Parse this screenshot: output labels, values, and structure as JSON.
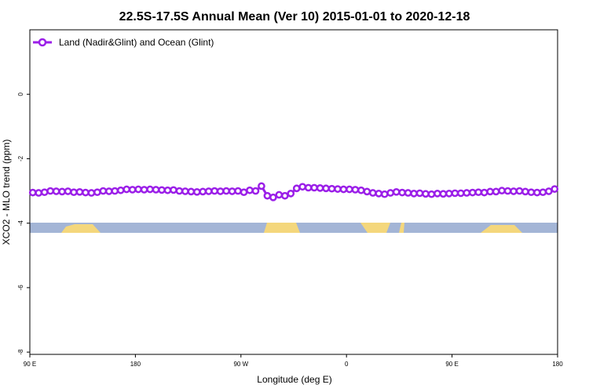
{
  "chart_data": {
    "type": "line",
    "title": "22.5S-17.5S Annual Mean (Ver 10)   2015-01-01 to 2020-12-18",
    "x_label": "Longitude (deg E)",
    "y_label": "XCO2 - MLO trend (ppm)",
    "xlim": [
      90,
      540
    ],
    "ylim": [
      -8.07,
      2
    ],
    "xticks": [
      {
        "value": 90,
        "label": "90 E"
      },
      180,
      {
        "value": 270,
        "label": "90 W"
      },
      {
        "value": 360,
        "label": "0"
      },
      {
        "value": 450,
        "label": "90 E"
      },
      {
        "value": 540,
        "label": "180"
      }
    ],
    "yticks": [
      0,
      -2,
      -4,
      -6,
      -8
    ],
    "legend": "top-left",
    "x": [
      92.5,
      97.5,
      102.5,
      107.5,
      112.5,
      117.5,
      122.5,
      127.5,
      132.5,
      137.5,
      142.5,
      147.5,
      152.5,
      157.5,
      162.5,
      167.5,
      172.5,
      177.5,
      182.5,
      187.5,
      192.5,
      197.5,
      202.5,
      207.5,
      212.5,
      217.5,
      222.5,
      227.5,
      232.5,
      237.5,
      242.5,
      247.5,
      252.5,
      257.5,
      262.5,
      267.5,
      272.5,
      277.5,
      282.5,
      287.5,
      292.5,
      297.5,
      302.5,
      307.5,
      312.5,
      317.5,
      322.5,
      327.5,
      332.5,
      337.5,
      342.5,
      347.5,
      352.5,
      357.5,
      362.5,
      367.5,
      372.5,
      377.5,
      382.5,
      387.5,
      392.5,
      397.5,
      402.5,
      407.5,
      412.5,
      417.5,
      422.5,
      427.5,
      432.5,
      437.5,
      442.5,
      447.5,
      452.5,
      457.5,
      462.5,
      467.5,
      472.5,
      477.5,
      482.5,
      487.5,
      492.5,
      497.5,
      502.5,
      507.5,
      512.5,
      517.5,
      522.5,
      527.5,
      532.5,
      537.5
    ],
    "series": [
      {
        "name": "Land (Nadir&Glint) and Ocean (Glint)",
        "color": "#9b1fe8",
        "values": [
          -3.05,
          -3.06,
          -3.04,
          -3.0,
          -3.01,
          -3.02,
          -3.01,
          -3.04,
          -3.03,
          -3.05,
          -3.06,
          -3.04,
          -3.0,
          -3.01,
          -3.0,
          -2.98,
          -2.95,
          -2.96,
          -2.95,
          -2.96,
          -2.95,
          -2.96,
          -2.97,
          -2.98,
          -2.97,
          -3.0,
          -3.01,
          -3.02,
          -3.03,
          -3.02,
          -3.01,
          -3.0,
          -3.01,
          -3.0,
          -3.01,
          -3.0,
          -3.04,
          -2.98,
          -3.0,
          -2.85,
          -3.15,
          -3.2,
          -3.12,
          -3.15,
          -3.08,
          -2.92,
          -2.87,
          -2.9,
          -2.9,
          -2.91,
          -2.92,
          -2.93,
          -2.94,
          -2.95,
          -2.95,
          -2.96,
          -2.98,
          -3.02,
          -3.06,
          -3.08,
          -3.1,
          -3.06,
          -3.03,
          -3.05,
          -3.06,
          -3.08,
          -3.07,
          -3.09,
          -3.1,
          -3.08,
          -3.09,
          -3.08,
          -3.07,
          -3.07,
          -3.06,
          -3.05,
          -3.04,
          -3.05,
          -3.02,
          -3.02,
          -2.99,
          -3.0,
          -3.01,
          -3.0,
          -3.02,
          -3.04,
          -3.05,
          -3.04,
          -3.01,
          -2.94
        ]
      }
    ]
  }
}
